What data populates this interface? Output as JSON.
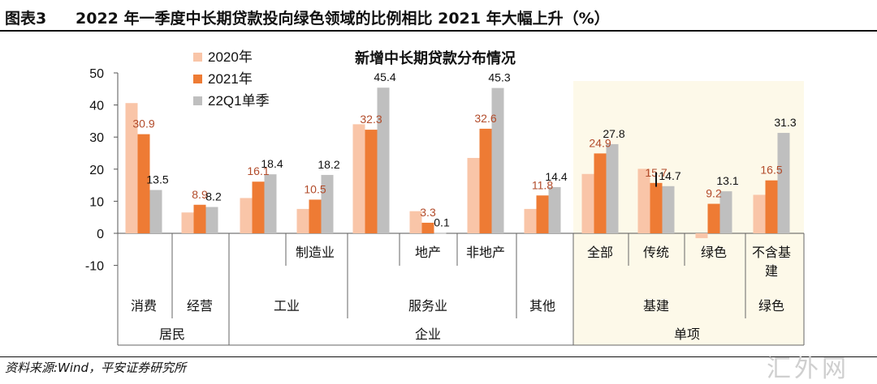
{
  "header": {
    "label": "图表3",
    "title": "2022 年一季度中长期贷款投向绿色领域的比例相比 2021 年大幅上升（%）"
  },
  "footer": {
    "source": "资料来源:Wind，平安证券研究所",
    "watermark": "汇外网"
  },
  "colors": {
    "2020": "#f9c5a8",
    "2021": "#ee7b34",
    "22Q1": "#bfbfbf",
    "label_dark": "#b24b2a",
    "label_black": "#111111",
    "highlight_bg": "#fdf9e9"
  },
  "chart_data": {
    "type": "bar",
    "title": "新增中长期贷款分布情况",
    "ylim": [
      -10,
      50
    ],
    "yticks": [
      "50",
      "40",
      "30",
      "20",
      "10",
      "0",
      "-10"
    ],
    "grid": false,
    "legend_position": "top-left",
    "legend": [
      "2020年",
      "2021年",
      "22Q1单季"
    ],
    "categories": [
      "消费",
      "经营",
      "制造业",
      "地产",
      "非地产",
      "其他",
      "全部",
      "传统",
      "绿色",
      "不含基建"
    ],
    "series": [
      {
        "name": "2020年",
        "values": [
          40.6,
          6.5,
          7.6,
          6.9,
          23.5,
          7.6,
          18.5,
          20.1,
          -1.5,
          12.0
        ]
      },
      {
        "name": "2021年",
        "values": [
          30.9,
          8.9,
          10.5,
          3.3,
          32.6,
          11.8,
          24.9,
          15.7,
          9.2,
          16.5
        ]
      },
      {
        "name": "22Q1单季",
        "values": [
          13.5,
          8.2,
          18.2,
          0.1,
          45.3,
          14.4,
          27.8,
          14.7,
          13.1,
          31.3
        ]
      }
    ],
    "extra_bar": {
      "group": "工业",
      "values": [
        11.0,
        16.1,
        18.4
      ]
    },
    "extra_bar_2": {
      "group": "服务业-总",
      "values": [
        34.0,
        32.3,
        45.4
      ]
    },
    "value_labels_2021": [
      "30.9",
      "8.9",
      "16.1",
      "10.5",
      "32.3",
      "3.3",
      "32.6",
      "11.8",
      "24.9",
      "15.7",
      "9.2",
      "16.5"
    ],
    "value_labels_22Q1": [
      "13.5",
      "8.2",
      "18.4",
      "18.2",
      "45.4",
      "0.1",
      "45.3",
      "14.4",
      "27.8",
      "14.7",
      "13.1",
      "31.3"
    ],
    "level2_labels": [
      "消费",
      "经营",
      "工业",
      "服务业",
      "其他",
      "基建",
      "绿色"
    ],
    "level3_labels": [
      "居民",
      "企业",
      "单项"
    ]
  }
}
